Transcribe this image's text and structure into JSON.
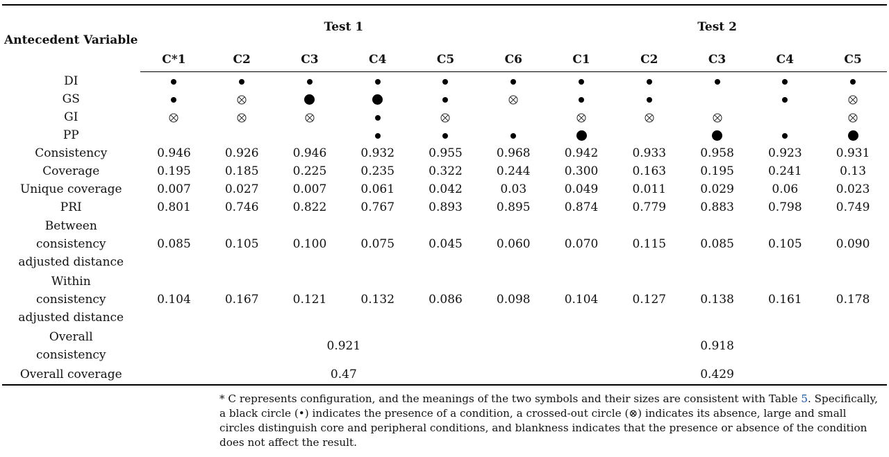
{
  "header": {
    "variable_label": "Antecedent Variable",
    "test1": "Test 1",
    "test2": "Test 2",
    "configs": [
      "C*1",
      "C2",
      "C3",
      "C4",
      "C5",
      "C6",
      "C1",
      "C2",
      "C3",
      "C4",
      "C5"
    ]
  },
  "symbols_legend": {
    "presence": "dot",
    "absence": "crossed-circle",
    "core": "large",
    "peripheral": "small"
  },
  "symbol_rows": [
    {
      "label": "DI",
      "cells": [
        "dot",
        "dot",
        "dot",
        "dot",
        "dot",
        "dot",
        "dot",
        "dot",
        "dot",
        "dot",
        "dot"
      ]
    },
    {
      "label": "GS",
      "cells": [
        "dot",
        "cross",
        "big",
        "big",
        "dot",
        "cross",
        "dot",
        "dot",
        "",
        "dot",
        "cross"
      ]
    },
    {
      "label": "GI",
      "cells": [
        "cross",
        "cross",
        "cross",
        "dot",
        "cross",
        "",
        "cross",
        "cross",
        "cross",
        "",
        "cross"
      ]
    },
    {
      "label": "PP",
      "cells": [
        "",
        "",
        "",
        "dot",
        "dot",
        "dot",
        "big",
        "",
        "big",
        "dot",
        "big"
      ]
    }
  ],
  "number_rows": [
    {
      "label": "Consistency",
      "values": [
        "0.946",
        "0.926",
        "0.946",
        "0.932",
        "0.955",
        "0.968",
        "0.942",
        "0.933",
        "0.958",
        "0.923",
        "0.931"
      ]
    },
    {
      "label": "Coverage",
      "values": [
        "0.195",
        "0.185",
        "0.225",
        "0.235",
        "0.322",
        "0.244",
        "0.300",
        "0.163",
        "0.195",
        "0.241",
        "0.13"
      ]
    },
    {
      "label": "Unique coverage",
      "values": [
        "0.007",
        "0.027",
        "0.007",
        "0.061",
        "0.042",
        "0.03",
        "0.049",
        "0.011",
        "0.029",
        "0.06",
        "0.023"
      ]
    },
    {
      "label": "PRI",
      "values": [
        "0.801",
        "0.746",
        "0.822",
        "0.767",
        "0.893",
        "0.895",
        "0.874",
        "0.779",
        "0.883",
        "0.798",
        "0.749"
      ]
    }
  ],
  "between": {
    "label_l1": "Between",
    "label_l2": "consistency",
    "label_l3": "adjusted distance",
    "values": [
      "0.085",
      "0.105",
      "0.100",
      "0.075",
      "0.045",
      "0.060",
      "0.070",
      "0.115",
      "0.085",
      "0.105",
      "0.090"
    ]
  },
  "within": {
    "label_l1": "Within",
    "label_l2": "consistency",
    "label_l3": "adjusted distance",
    "values": [
      "0.104",
      "0.167",
      "0.121",
      "0.132",
      "0.086",
      "0.098",
      "0.104",
      "0.127",
      "0.138",
      "0.161",
      "0.178"
    ]
  },
  "overall_consistency": {
    "label_l1": "Overall",
    "label_l2": "consistency",
    "test1": "0.921",
    "test2": "0.918"
  },
  "overall_coverage": {
    "label": "Overall coverage",
    "test1": "0.47",
    "test2": "0.429"
  },
  "footnote": {
    "part1": "* C represents configuration, and the meanings of the two symbols and their sizes are consistent with Table ",
    "table_ref": "5",
    "part2": ". Specifically, a black circle (•) indicates the presence of a condition, a crossed-out circle (⊗) indicates its absence, large and small circles distinguish core and peripheral conditions, and blankness indicates that the presence or absence of the condition does not affect the result."
  }
}
